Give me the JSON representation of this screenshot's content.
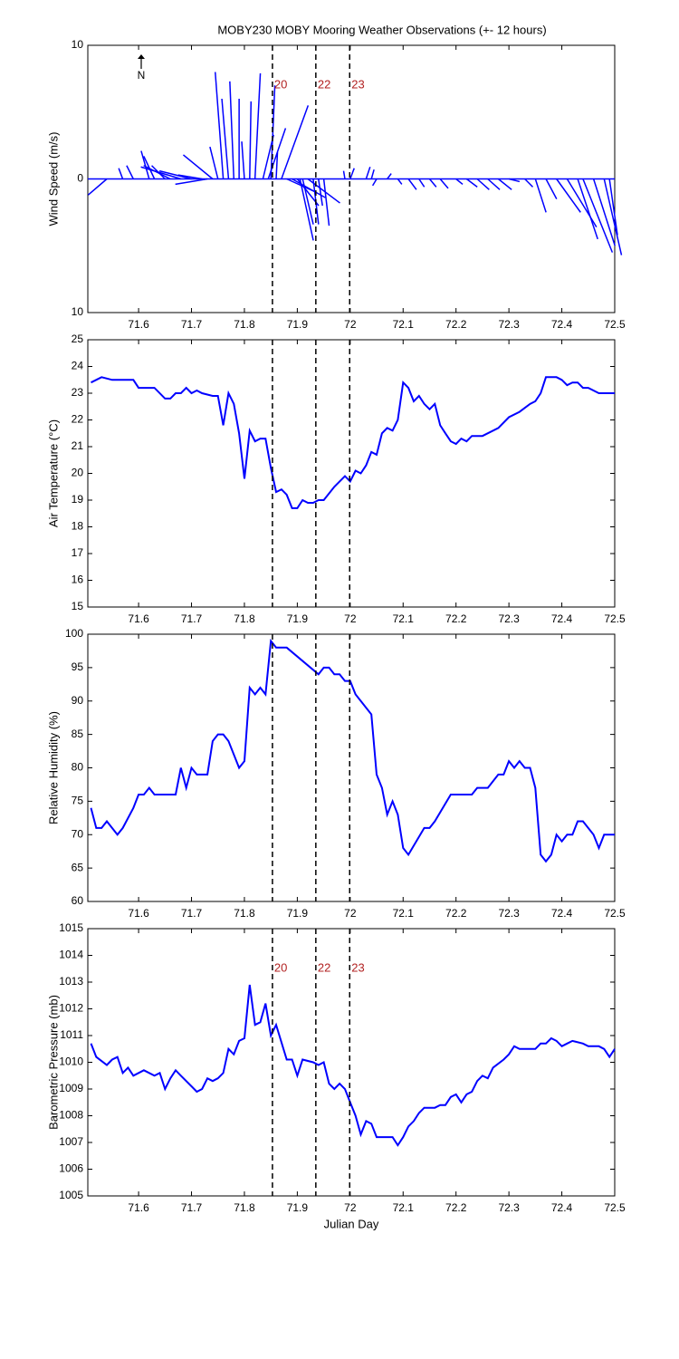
{
  "chart_data": [
    {
      "type": "feather",
      "title": "MOBY230 MOBY Mooring Weather Observations (+- 12 hours)",
      "ylabel": "Wind Speed (m/s)",
      "north_label": "N",
      "color": "#0000ff",
      "x": [
        71.54,
        71.57,
        71.59,
        71.62,
        71.63,
        71.65,
        71.66,
        71.68,
        71.7,
        71.72,
        71.73,
        71.74,
        71.75,
        71.76,
        71.77,
        71.78,
        71.79,
        71.8,
        71.81,
        71.82,
        71.835,
        71.845,
        71.85,
        71.86,
        71.87,
        71.88,
        71.89,
        71.9,
        71.905,
        71.91,
        71.92,
        71.93,
        71.94,
        71.95,
        71.99,
        72.0,
        72.03,
        72.04,
        72.05,
        72.07,
        72.09,
        72.11,
        72.13,
        72.15,
        72.17,
        72.2,
        72.22,
        72.24,
        72.26,
        72.28,
        72.3,
        72.33,
        72.35,
        72.37,
        72.39,
        72.41,
        72.43,
        72.44,
        72.46,
        72.48,
        72.49
      ],
      "u": [
        -1.4,
        -0.3,
        -0.5,
        -0.6,
        -0.8,
        -1.0,
        -2.0,
        -3.0,
        -2.4,
        -1.8,
        -2.4,
        -2.2,
        -0.6,
        -0.6,
        -0.5,
        -0.3,
        0,
        -0.2,
        0.1,
        0.4,
        0.8,
        1.3,
        0.3,
        0.1,
        2.0,
        2.2,
        2.5,
        1.6,
        1.0,
        0.8,
        2.4,
        0.4,
        0.3,
        0.4,
        -0.1,
        0.3,
        0.3,
        0.2,
        -0.3,
        0.3,
        0.3,
        0.6,
        0.4,
        0.5,
        0.6,
        0.5,
        0.8,
        0.9,
        0.9,
        1.0,
        0.8,
        0.6,
        0.8,
        0.8,
        1.8,
        2.2,
        1.5,
        2.2,
        1.6,
        1.3,
        0.6
      ],
      "v": [
        -1.2,
        0.8,
        1.0,
        2.1,
        1.7,
        1.0,
        1.0,
        0.9,
        0.6,
        0.3,
        -0.4,
        1.8,
        2.4,
        8.0,
        6.0,
        7.3,
        6.0,
        2.8,
        5.8,
        7.9,
        3.3,
        3.8,
        7.0,
        2.0,
        5.5,
        -1.0,
        -1.4,
        -2.0,
        -4.6,
        -3.4,
        -1.8,
        -3.4,
        -2.0,
        -3.5,
        0.6,
        0.8,
        0.9,
        0.7,
        -0.5,
        0.4,
        -0.4,
        -0.8,
        -0.6,
        -0.6,
        -0.7,
        -0.4,
        -0.6,
        -0.8,
        -0.8,
        -0.8,
        -0.2,
        -0.6,
        -2.5,
        -1.5,
        -2.5,
        -3.6,
        -4.5,
        -5.5,
        -5.0,
        -5.7,
        -4.2
      ],
      "xlim": [
        71.504,
        72.5
      ],
      "xticks": [
        71.6,
        71.7,
        71.8,
        71.9,
        72,
        72.1,
        72.2,
        72.3,
        72.4,
        72.5
      ],
      "ylim": [
        -10,
        10
      ],
      "yticks": [
        {
          "value": -10,
          "label": "10"
        },
        0,
        10
      ],
      "event_lines": [
        71.853,
        71.935,
        71.999
      ],
      "event_labels": [
        "20",
        "22",
        "23"
      ]
    },
    {
      "type": "line",
      "ylabel": "Air Temperature (°C)",
      "color": "#0000ff",
      "x": [
        71.51,
        71.53,
        71.55,
        71.59,
        71.6,
        71.63,
        71.65,
        71.66,
        71.67,
        71.68,
        71.69,
        71.7,
        71.71,
        71.72,
        71.74,
        71.75,
        71.76,
        71.77,
        71.78,
        71.79,
        71.8,
        71.81,
        71.82,
        71.83,
        71.84,
        71.85,
        71.86,
        71.87,
        71.88,
        71.89,
        71.9,
        71.91,
        71.92,
        71.93,
        71.94,
        71.95,
        71.97,
        71.99,
        72.0,
        72.01,
        72.02,
        72.03,
        72.04,
        72.05,
        72.06,
        72.07,
        72.08,
        72.09,
        72.1,
        72.11,
        72.12,
        72.13,
        72.14,
        72.15,
        72.16,
        72.17,
        72.18,
        72.19,
        72.2,
        72.21,
        72.22,
        72.23,
        72.25,
        72.28,
        72.3,
        72.32,
        72.34,
        72.35,
        72.36,
        72.37,
        72.39,
        72.4,
        72.41,
        72.42,
        72.43,
        72.44,
        72.45,
        72.47,
        72.5
      ],
      "values": [
        23.4,
        23.6,
        23.5,
        23.5,
        23.2,
        23.2,
        22.8,
        22.8,
        23.0,
        23.0,
        23.2,
        23.0,
        23.1,
        23.0,
        22.9,
        22.9,
        21.8,
        23.0,
        22.6,
        21.5,
        19.8,
        21.6,
        21.2,
        21.3,
        21.3,
        20.2,
        19.3,
        19.4,
        19.2,
        18.7,
        18.7,
        19.0,
        18.9,
        18.9,
        19.0,
        19.0,
        19.5,
        19.9,
        19.7,
        20.1,
        20.0,
        20.3,
        20.8,
        20.7,
        21.5,
        21.7,
        21.6,
        22.0,
        23.4,
        23.2,
        22.7,
        22.9,
        22.6,
        22.4,
        22.6,
        21.8,
        21.5,
        21.2,
        21.1,
        21.3,
        21.2,
        21.4,
        21.4,
        21.7,
        22.1,
        22.3,
        22.6,
        22.7,
        23.0,
        23.6,
        23.6,
        23.5,
        23.3,
        23.4,
        23.4,
        23.2,
        23.2,
        23.0,
        23.0
      ],
      "xlim": [
        71.504,
        72.5
      ],
      "xticks": [
        71.6,
        71.7,
        71.8,
        71.9,
        72,
        72.1,
        72.2,
        72.3,
        72.4,
        72.5
      ],
      "ylim": [
        15,
        25
      ],
      "yticks": [
        15,
        16,
        17,
        18,
        19,
        20,
        21,
        22,
        23,
        24,
        25
      ],
      "event_lines": [
        71.853,
        71.935,
        71.999
      ]
    },
    {
      "type": "line",
      "ylabel": "Relative Humidity (%)",
      "color": "#0000ff",
      "x": [
        71.51,
        71.52,
        71.53,
        71.54,
        71.56,
        71.57,
        71.59,
        71.6,
        71.61,
        71.62,
        71.63,
        71.66,
        71.67,
        71.68,
        71.69,
        71.7,
        71.71,
        71.73,
        71.74,
        71.75,
        71.76,
        71.77,
        71.79,
        71.8,
        71.81,
        71.82,
        71.83,
        71.84,
        71.85,
        71.86,
        71.88,
        71.94,
        71.95,
        71.96,
        71.97,
        71.98,
        71.99,
        72.0,
        72.01,
        72.04,
        72.05,
        72.06,
        72.07,
        72.08,
        72.09,
        72.1,
        72.11,
        72.14,
        72.15,
        72.16,
        72.19,
        72.23,
        72.24,
        72.26,
        72.27,
        72.28,
        72.29,
        72.3,
        72.31,
        72.32,
        72.33,
        72.34,
        72.35,
        72.36,
        72.37,
        72.38,
        72.39,
        72.4,
        72.41,
        72.42,
        72.43,
        72.44,
        72.46,
        72.47,
        72.48,
        72.5
      ],
      "values": [
        74,
        71,
        71,
        72,
        70,
        71,
        74,
        76,
        76,
        77,
        76,
        76,
        76,
        80,
        77,
        80,
        79,
        79,
        84,
        85,
        85,
        84,
        80,
        81,
        92,
        91,
        92,
        91,
        99,
        98,
        98,
        94,
        95,
        95,
        94,
        94,
        93,
        93,
        91,
        88,
        79,
        77,
        73,
        75,
        73,
        68,
        67,
        71,
        71,
        72,
        76,
        76,
        77,
        77,
        78,
        79,
        79,
        81,
        80,
        81,
        80,
        80,
        77,
        67,
        66,
        67,
        70,
        69,
        70,
        70,
        72,
        72,
        70,
        68,
        70,
        70
      ],
      "xlim": [
        71.504,
        72.5
      ],
      "xticks": [
        71.6,
        71.7,
        71.8,
        71.9,
        72,
        72.1,
        72.2,
        72.3,
        72.4,
        72.5
      ],
      "ylim": [
        60,
        100
      ],
      "yticks": [
        60,
        65,
        70,
        75,
        80,
        85,
        90,
        95,
        100
      ],
      "event_lines": [
        71.853,
        71.935,
        71.999
      ]
    },
    {
      "type": "line",
      "ylabel": "Barometric Pressure (mb)",
      "xlabel": "Julian Day",
      "color": "#0000ff",
      "x": [
        71.51,
        71.52,
        71.54,
        71.55,
        71.56,
        71.57,
        71.58,
        71.59,
        71.61,
        71.63,
        71.64,
        71.65,
        71.66,
        71.67,
        71.68,
        71.7,
        71.71,
        71.72,
        71.73,
        71.74,
        71.75,
        71.76,
        71.77,
        71.78,
        71.79,
        71.8,
        71.81,
        71.82,
        71.83,
        71.84,
        71.85,
        71.86,
        71.88,
        71.89,
        71.9,
        71.91,
        71.93,
        71.94,
        71.95,
        71.96,
        71.97,
        71.98,
        71.99,
        72.0,
        72.01,
        72.02,
        72.03,
        72.04,
        72.05,
        72.06,
        72.07,
        72.08,
        72.09,
        72.1,
        72.11,
        72.12,
        72.13,
        72.14,
        72.16,
        72.17,
        72.18,
        72.19,
        72.2,
        72.21,
        72.22,
        72.23,
        72.24,
        72.25,
        72.26,
        72.27,
        72.29,
        72.3,
        72.31,
        72.32,
        72.35,
        72.36,
        72.37,
        72.38,
        72.39,
        72.4,
        72.41,
        72.42,
        72.44,
        72.45,
        72.46,
        72.47,
        72.48,
        72.49,
        72.5
      ],
      "values": [
        1010.7,
        1010.2,
        1009.9,
        1010.1,
        1010.2,
        1009.6,
        1009.8,
        1009.5,
        1009.7,
        1009.5,
        1009.6,
        1009.0,
        1009.4,
        1009.7,
        1009.5,
        1009.1,
        1008.9,
        1009.0,
        1009.4,
        1009.3,
        1009.4,
        1009.6,
        1010.5,
        1010.3,
        1010.8,
        1010.9,
        1012.9,
        1011.4,
        1011.5,
        1012.2,
        1011.0,
        1011.4,
        1010.1,
        1010.1,
        1009.5,
        1010.1,
        1010.0,
        1009.9,
        1010.0,
        1009.2,
        1009.0,
        1009.2,
        1009.0,
        1008.5,
        1008.0,
        1007.3,
        1007.8,
        1007.7,
        1007.2,
        1007.2,
        1007.2,
        1007.2,
        1006.9,
        1007.2,
        1007.6,
        1007.8,
        1008.1,
        1008.3,
        1008.3,
        1008.4,
        1008.4,
        1008.7,
        1008.8,
        1008.5,
        1008.8,
        1008.9,
        1009.3,
        1009.5,
        1009.4,
        1009.8,
        1010.1,
        1010.3,
        1010.6,
        1010.5,
        1010.5,
        1010.7,
        1010.7,
        1010.9,
        1010.8,
        1010.6,
        1010.7,
        1010.8,
        1010.7,
        1010.6,
        1010.6,
        1010.6,
        1010.5,
        1010.2,
        1010.5
      ],
      "xlim": [
        71.504,
        72.5
      ],
      "xticks": [
        71.6,
        71.7,
        71.8,
        71.9,
        72,
        72.1,
        72.2,
        72.3,
        72.4,
        72.5
      ],
      "ylim": [
        1005,
        1015
      ],
      "yticks": [
        1005,
        1006,
        1007,
        1008,
        1009,
        1010,
        1011,
        1012,
        1013,
        1014,
        1015
      ],
      "event_lines": [
        71.853,
        71.935,
        71.999
      ],
      "event_labels": [
        "20",
        "22",
        "23"
      ]
    }
  ]
}
